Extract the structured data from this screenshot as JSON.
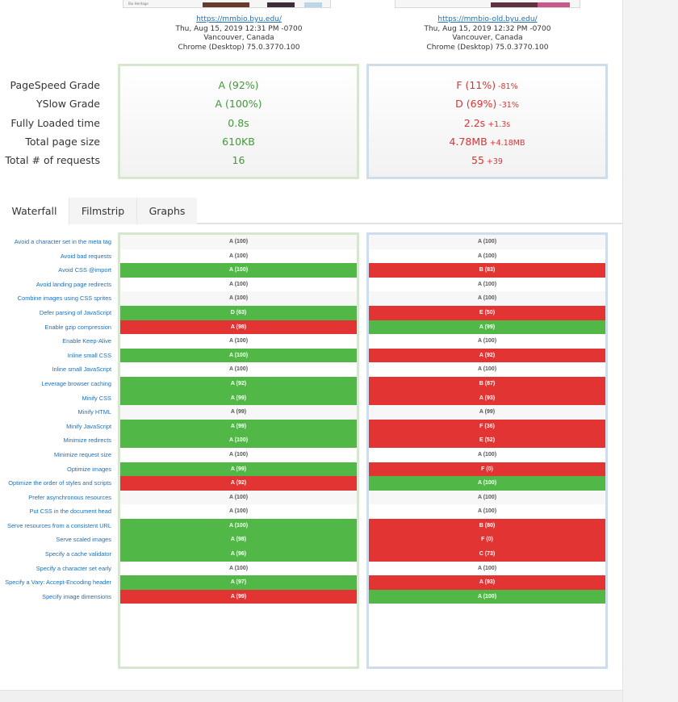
{
  "colors": {
    "better": "#51b848",
    "worse": "#e33434",
    "accent": "#1f6fb5",
    "left_border": "#d7e7cf",
    "right_border": "#cfdceb"
  },
  "thumbnails": {
    "left_caption": "Bio Heritage"
  },
  "reports": [
    {
      "url": "https://mmbio.byu.edu/",
      "date": "Thu, Aug 15, 2019 12:31 PM -0700",
      "location": "Vancouver, Canada",
      "browser": "Chrome (Desktop) 75.0.3770.100"
    },
    {
      "url": "https://mmbio-old.byu.edu/",
      "date": "Thu, Aug 15, 2019 12:32 PM -0700",
      "location": "Vancouver, Canada",
      "browser": "Chrome (Desktop) 75.0.3770.100"
    }
  ],
  "summary": {
    "labels": [
      "PageSpeed Grade",
      "YSlow Grade",
      "Fully Loaded time",
      "Total page size",
      "Total # of requests"
    ],
    "left": [
      "A (92%)",
      "A (100%)",
      "0.8s",
      "610KB",
      "16"
    ],
    "right": [
      {
        "value": "F (11%)",
        "diff": "-81%"
      },
      {
        "value": "D (69%)",
        "diff": "-31%"
      },
      {
        "value": "2.2s",
        "diff": "+1.3s"
      },
      {
        "value": "4.78MB",
        "diff": "+4.18MB"
      },
      {
        "value": "55",
        "diff": "+39"
      }
    ]
  },
  "tabs": [
    {
      "label": "Waterfall",
      "active": true
    },
    {
      "label": "Filmstrip",
      "active": false
    },
    {
      "label": "Graphs",
      "active": false
    }
  ],
  "rules": [
    {
      "name": "Avoid a character set in the meta tag",
      "left": "A (100)",
      "right": "A (100)",
      "winner": "none"
    },
    {
      "name": "Avoid bad requests",
      "left": "A (100)",
      "right": "A (100)",
      "winner": "none"
    },
    {
      "name": "Avoid CSS @import",
      "left": "A (100)",
      "right": "B (83)",
      "winner": "left"
    },
    {
      "name": "Avoid landing page redirects",
      "left": "A (100)",
      "right": "A (100)",
      "winner": "none"
    },
    {
      "name": "Combine images using CSS sprites",
      "left": "A (100)",
      "right": "A (100)",
      "winner": "none"
    },
    {
      "name": "Defer parsing of JavaScript",
      "left": "D (63)",
      "right": "E (50)",
      "winner": "left"
    },
    {
      "name": "Enable gzip compression",
      "left": "A (98)",
      "right": "A (99)",
      "winner": "right"
    },
    {
      "name": "Enable Keep-Alive",
      "left": "A (100)",
      "right": "A (100)",
      "winner": "none"
    },
    {
      "name": "Inline small CSS",
      "left": "A (100)",
      "right": "A (92)",
      "winner": "left"
    },
    {
      "name": "Inline small JavaScript",
      "left": "A (100)",
      "right": "A (100)",
      "winner": "none"
    },
    {
      "name": "Leverage browser caching",
      "left": "A (92)",
      "right": "B (87)",
      "winner": "left"
    },
    {
      "name": "Minify CSS",
      "left": "A (99)",
      "right": "A (93)",
      "winner": "left"
    },
    {
      "name": "Minify HTML",
      "left": "A (99)",
      "right": "A (99)",
      "winner": "none"
    },
    {
      "name": "Minify JavaScript",
      "left": "A (99)",
      "right": "F (36)",
      "winner": "left"
    },
    {
      "name": "Minimize redirects",
      "left": "A (100)",
      "right": "E (52)",
      "winner": "left"
    },
    {
      "name": "Minimize request size",
      "left": "A (100)",
      "right": "A (100)",
      "winner": "none"
    },
    {
      "name": "Optimize images",
      "left": "A (99)",
      "right": "F (0)",
      "winner": "left"
    },
    {
      "name": "Optimize the order of styles and scripts",
      "left": "A (92)",
      "right": "A (100)",
      "winner": "right"
    },
    {
      "name": "Prefer asynchronous resources",
      "left": "A (100)",
      "right": "A (100)",
      "winner": "none"
    },
    {
      "name": "Put CSS in the document head",
      "left": "A (100)",
      "right": "A (100)",
      "winner": "none"
    },
    {
      "name": "Serve resources from a consistent URL",
      "left": "A (100)",
      "right": "B (80)",
      "winner": "left"
    },
    {
      "name": "Serve scaled images",
      "left": "A (98)",
      "right": "F (0)",
      "winner": "left"
    },
    {
      "name": "Specify a cache validator",
      "left": "A (96)",
      "right": "C (73)",
      "winner": "left"
    },
    {
      "name": "Specify a character set early",
      "left": "A (100)",
      "right": "A (100)",
      "winner": "none"
    },
    {
      "name": "Specify a Vary: Accept-Encoding header",
      "left": "A (97)",
      "right": "A (93)",
      "winner": "left"
    },
    {
      "name": "Specify image dimensions",
      "left": "A (99)",
      "right": "A (100)",
      "winner": "right"
    }
  ]
}
